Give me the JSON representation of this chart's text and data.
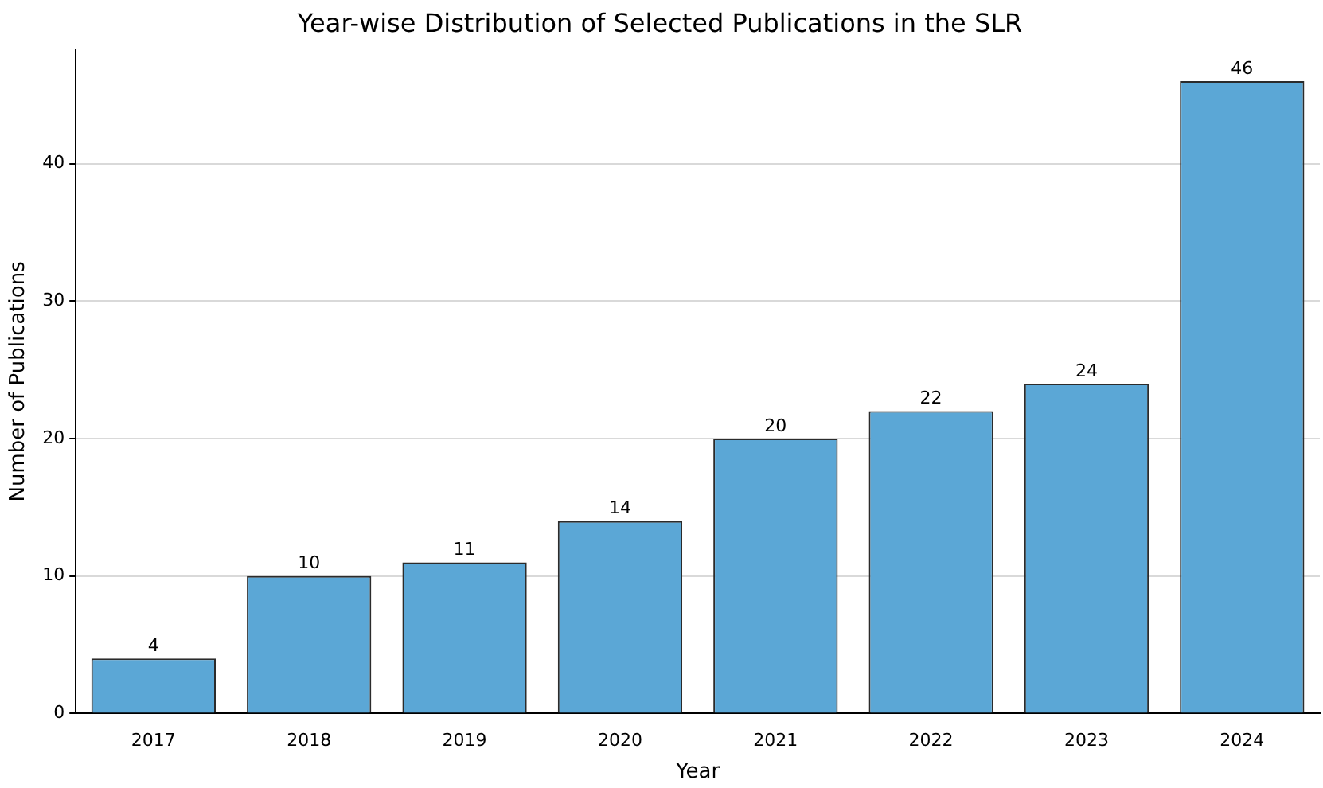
{
  "chart_data": {
    "type": "bar",
    "title": "Year-wise Distribution of Selected Publications in the SLR",
    "xlabel": "Year",
    "ylabel": "Number of Publications",
    "categories": [
      "2017",
      "2018",
      "2019",
      "2020",
      "2021",
      "2022",
      "2023",
      "2024"
    ],
    "values": [
      4,
      10,
      11,
      14,
      20,
      22,
      24,
      46
    ],
    "color": "#5ba7d6",
    "ylim": [
      0,
      48.3
    ],
    "yticks": [
      0,
      10,
      20,
      30,
      40
    ],
    "grid": "y",
    "data_labels": true
  }
}
